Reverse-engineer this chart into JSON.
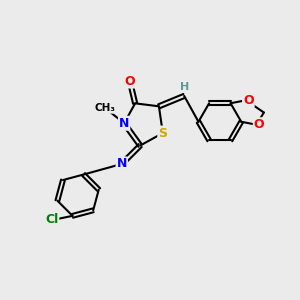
{
  "background_color": "#ebebeb",
  "atom_colors": {
    "C": "#000000",
    "N": "#0000ff",
    "O": "#ff0000",
    "S": "#ccaa00",
    "Cl": "#008000",
    "H": "#5c9999"
  },
  "bond_color": "#000000",
  "bond_width": 1.5,
  "figsize": [
    3.0,
    3.0
  ],
  "dpi": 100
}
